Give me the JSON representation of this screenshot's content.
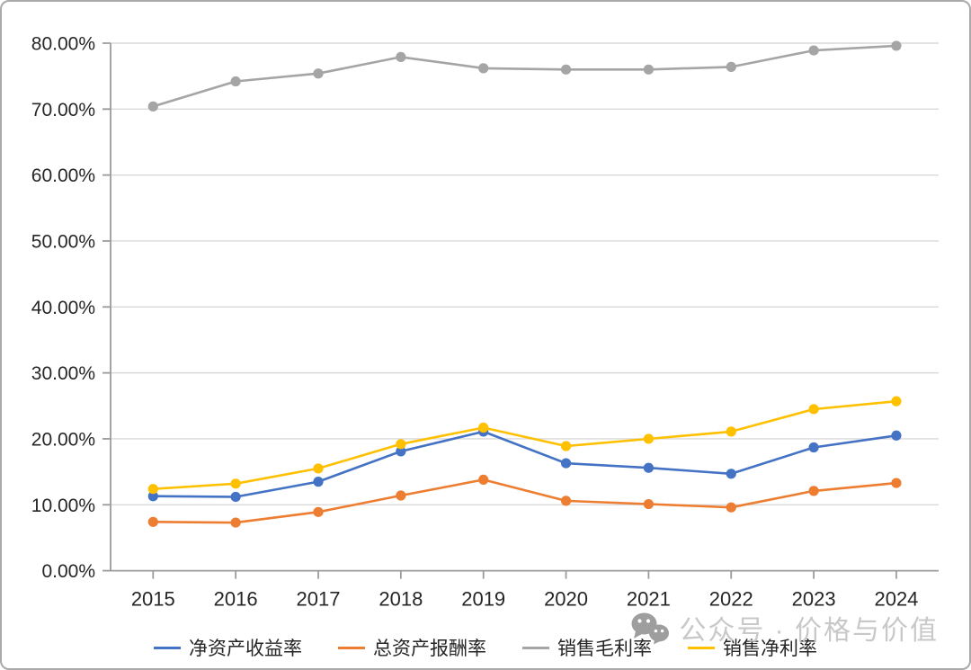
{
  "chart_data": {
    "type": "line",
    "categories": [
      "2015",
      "2016",
      "2017",
      "2018",
      "2019",
      "2020",
      "2021",
      "2022",
      "2023",
      "2024"
    ],
    "series": [
      {
        "name": "净资产收益率",
        "color": "#4472C4",
        "values": [
          11.3,
          11.2,
          13.5,
          18.1,
          21.1,
          16.3,
          15.6,
          14.7,
          18.7,
          20.5
        ]
      },
      {
        "name": "总资产报酬率",
        "color": "#ED7D31",
        "values": [
          7.4,
          7.3,
          8.9,
          11.4,
          13.8,
          10.6,
          10.1,
          9.6,
          12.1,
          13.3
        ]
      },
      {
        "name": "销售毛利率",
        "color": "#A5A5A5",
        "values": [
          70.4,
          74.2,
          75.4,
          77.9,
          76.2,
          76.0,
          76.0,
          76.4,
          78.9,
          79.6
        ]
      },
      {
        "name": "销售净利率",
        "color": "#FFC000",
        "values": [
          12.4,
          13.2,
          15.5,
          19.2,
          21.7,
          18.9,
          20.0,
          21.1,
          24.5,
          25.7
        ]
      }
    ],
    "title": "",
    "xlabel": "",
    "ylabel": "",
    "ylim": [
      0,
      80
    ],
    "y_tick_labels": [
      "0.00%",
      "10.00%",
      "20.00%",
      "30.00%",
      "40.00%",
      "50.00%",
      "60.00%",
      "70.00%",
      "80.00%"
    ],
    "grid": true,
    "legend_position": "bottom",
    "axis_color": "#9b9b9b",
    "grid_color": "#d9d9d9",
    "tick_label_color": "#262626"
  },
  "watermark": {
    "text": "公众号 · 价格与价值",
    "icon": "wechat-icon",
    "text_color": "#c8c8c8",
    "icon_color": "#9e9e9e"
  }
}
